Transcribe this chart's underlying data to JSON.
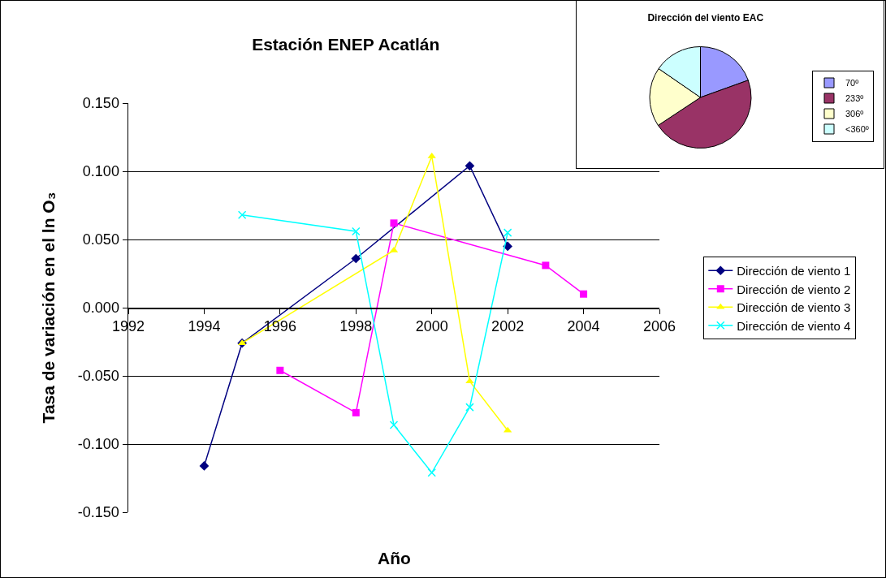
{
  "chart_data": [
    {
      "type": "line",
      "title": "Estación ENEP Acatlán",
      "xlabel": "Año",
      "ylabel": "Tasa de variación en el ln O₃",
      "xlim": [
        1992,
        2006
      ],
      "xticks": [
        1992,
        1994,
        1996,
        1998,
        2000,
        2002,
        2004,
        2006
      ],
      "ylim": [
        -0.15,
        0.15
      ],
      "yticks": [
        {
          "value": -0.15,
          "label": "-0.150"
        },
        {
          "value": -0.1,
          "label": "-0.100"
        },
        {
          "value": -0.05,
          "label": "-0.050"
        },
        {
          "value": 0,
          "label": "0.000"
        },
        {
          "value": 0.05,
          "label": "0.050"
        },
        {
          "value": 0.1,
          "label": "0.100"
        },
        {
          "value": 0.15,
          "label": "0.150"
        }
      ],
      "grid": "y",
      "legend": "right",
      "series": [
        {
          "name": "Dirección de viento 1",
          "color": "#000080",
          "marker": "diamond",
          "x": [
            1994,
            1995,
            1998,
            2001,
            2002
          ],
          "values": [
            -0.116,
            -0.026,
            0.036,
            0.104,
            0.045
          ]
        },
        {
          "name": "Dirección de viento 2",
          "color": "#ff00ff",
          "marker": "square",
          "x": [
            1996,
            1998,
            1999,
            2003,
            2004
          ],
          "values": [
            -0.046,
            -0.077,
            0.062,
            0.031,
            0.01
          ]
        },
        {
          "name": "Dirección de viento 3",
          "color": "#ffff00",
          "marker": "triangle",
          "x": [
            1995,
            1999,
            2000,
            2001,
            2002
          ],
          "values": [
            -0.026,
            0.042,
            0.111,
            -0.054,
            -0.09
          ]
        },
        {
          "name": "Dirección de viento 4",
          "color": "#00ffff",
          "marker": "cross",
          "x": [
            1995,
            1998,
            1999,
            2000,
            2001,
            2002
          ],
          "values": [
            0.068,
            0.056,
            -0.086,
            -0.121,
            -0.073,
            0.055
          ]
        }
      ]
    },
    {
      "type": "pie",
      "title": "Dirección del viento EAC",
      "legend": "right",
      "categories": [
        "70º",
        "233º",
        "306º",
        "<360º"
      ],
      "values": [
        19.5,
        46.2,
        18.9,
        15.4
      ],
      "colors": [
        "#9999ff",
        "#993366",
        "#ffffcc",
        "#ccffff"
      ]
    }
  ]
}
